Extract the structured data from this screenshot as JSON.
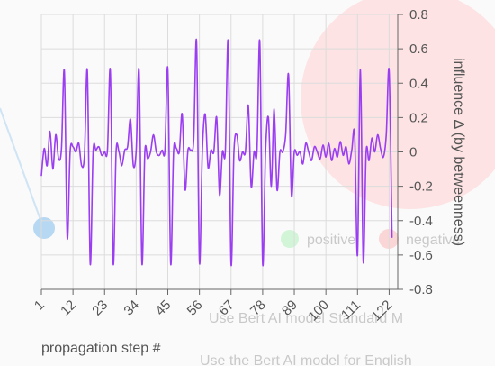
{
  "background": {
    "legend": {
      "positive": "positive",
      "negative": "negative"
    },
    "model_line": "Use Bert AI model   Standard M",
    "bottom_line": "Use the Bert AI model for English",
    "colors": {
      "circle": "#fde3e3",
      "positive": "#d2f5d8",
      "negative": "#fbd6d6",
      "node": "#b6d8f2"
    }
  },
  "chart_data": {
    "type": "line",
    "xlabel": "propagation step #",
    "ylabel": "influence Δ (by betweenness)",
    "xlim": [
      1,
      125
    ],
    "ylim": [
      -0.8,
      0.8
    ],
    "x_ticks": [
      1,
      12,
      23,
      34,
      45,
      56,
      67,
      78,
      89,
      100,
      111,
      122
    ],
    "y_ticks": [
      0.8,
      0.6,
      0.4,
      0.2,
      0,
      -0.2,
      -0.4,
      -0.6,
      -0.8
    ],
    "y_tick_labels": [
      "0.8",
      "0.6",
      "0.4",
      "0.2",
      "0",
      "-0.2",
      "-0.4",
      "-0.6",
      "-0.8"
    ],
    "grid": true,
    "color": "#9b3df0",
    "series": [
      {
        "x": [
          1,
          2,
          3,
          4,
          5,
          6,
          7,
          8,
          9,
          10,
          11,
          12,
          13,
          14,
          15,
          16,
          17,
          18,
          19,
          20,
          21,
          22,
          23,
          24,
          25,
          26,
          27,
          28,
          29,
          30,
          31,
          32,
          33,
          34,
          35,
          36,
          37,
          38,
          39,
          40,
          41,
          42,
          43,
          44,
          45,
          46,
          47,
          48,
          49,
          50,
          51,
          52,
          53,
          54,
          55,
          56,
          57,
          58,
          59,
          60,
          61,
          62,
          63,
          64,
          65,
          66,
          67,
          68,
          69,
          70,
          71,
          72,
          73,
          74,
          75,
          76,
          77,
          78,
          79,
          80,
          81,
          82,
          83,
          84,
          85,
          86,
          87,
          88,
          89,
          90,
          91,
          92,
          93,
          94,
          95,
          96,
          97,
          98,
          99,
          100,
          101,
          102,
          103,
          104,
          105,
          106,
          107,
          108,
          109,
          110,
          111,
          112,
          113,
          114,
          115,
          116,
          117,
          118,
          119,
          120,
          121,
          122,
          123
        ],
        "values": [
          -0.14,
          0.02,
          -0.08,
          0.12,
          -0.1,
          0.1,
          -0.04,
          0.02,
          0.47,
          -0.5,
          0.0,
          0.03,
          0.0,
          0.05,
          -0.08,
          -0.02,
          0.47,
          -0.65,
          0.0,
          0.01,
          0.03,
          -0.02,
          0.0,
          0.01,
          0.47,
          -0.65,
          0.0,
          0.0,
          -0.08,
          0.01,
          0.03,
          0.19,
          -0.08,
          0.01,
          0.47,
          -0.65,
          0.0,
          -0.04,
          0.0,
          0.1,
          0.0,
          -0.02,
          0.01,
          0.01,
          0.48,
          -0.65,
          0.0,
          0.02,
          0.0,
          0.22,
          -0.22,
          0.01,
          0.01,
          0.07,
          0.64,
          -0.64,
          0.0,
          0.22,
          -0.09,
          0.01,
          0.0,
          0.2,
          -0.25,
          0.0,
          0.0,
          0.64,
          -0.65,
          0.0,
          0.1,
          -0.05,
          0.0,
          0.0,
          0.27,
          -0.2,
          0.0,
          0.0,
          0.64,
          -0.65,
          0.0,
          0.2,
          -0.2,
          0.25,
          -0.22,
          0.0,
          0.0,
          0.1,
          0.45,
          -0.25,
          0.0,
          -0.02,
          0.0,
          -0.07,
          0.05,
          0.0,
          -0.05,
          0.03,
          0.0,
          -0.04,
          0.04,
          -0.03,
          0.05,
          -0.05,
          0.02,
          -0.03,
          0.06,
          -0.02,
          0.03,
          -0.07,
          0.01,
          0.1,
          -0.6,
          0.48,
          -0.64,
          0.0,
          -0.05,
          0.08,
          0.0,
          0.1,
          0.02,
          -0.03,
          0.1,
          0.47,
          -0.5
        ]
      }
    ]
  }
}
